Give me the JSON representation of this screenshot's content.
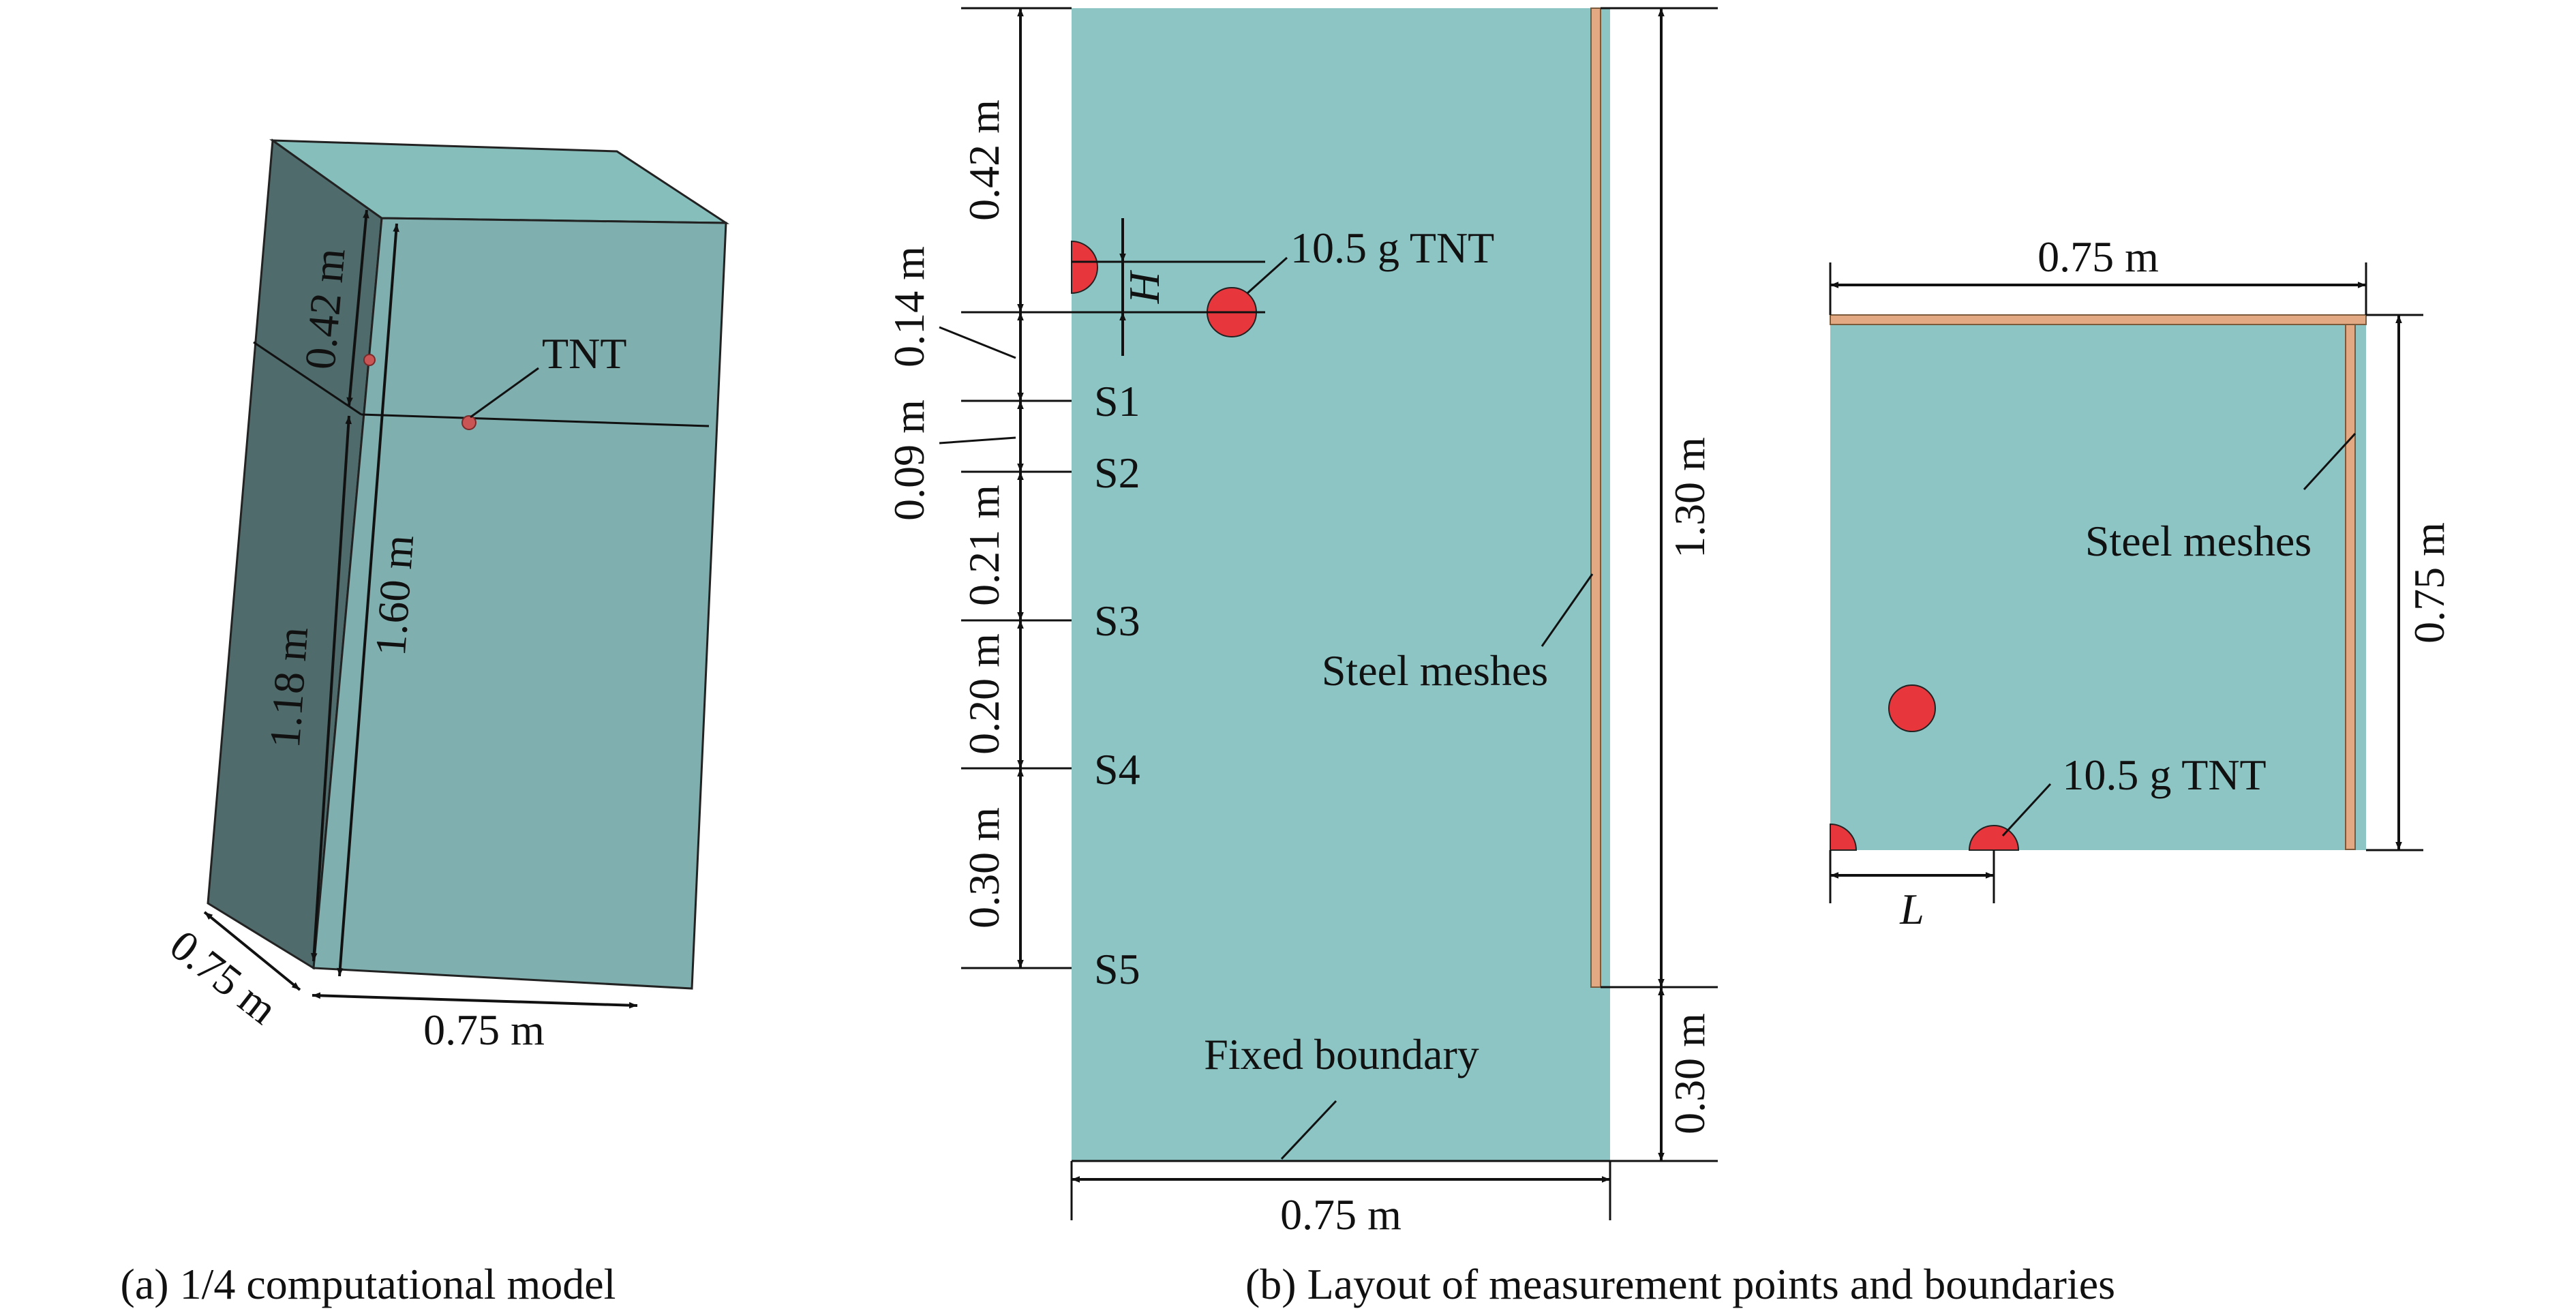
{
  "colors": {
    "medium": "#8CC5C4",
    "medium_front": "#7FAFAE",
    "medium_top": "#86BEBC",
    "medium_side": "#4F6B6B",
    "steel_mesh": "#E2A982",
    "tnt": "#E8363D",
    "line": "#111111"
  },
  "panel_a": {
    "caption": "(a) 1/4 computational model",
    "tnt_label": "TNT",
    "dims": {
      "top_height": "0.42 m",
      "lower_height": "1.18 m",
      "total_height": "1.60 m",
      "depth": "0.75 m",
      "width": "0.75 m"
    }
  },
  "panel_b": {
    "caption": "(b) Layout of measurement points and boundaries",
    "front_view": {
      "charge_label": "10.5 g TNT",
      "depth_symbol": "H",
      "mesh_label": "Steel meshes",
      "boundary_label": "Fixed boundary",
      "points": [
        "S1",
        "S2",
        "S3",
        "S4",
        "S5"
      ],
      "dims": {
        "top": "0.42 m",
        "s1": "0.14 m",
        "s2": "0.09 m",
        "s3": "0.21 m",
        "s4": "0.20 m",
        "s5": "0.30 m",
        "mesh_height": "1.30 m",
        "bottom": "0.30 m",
        "width": "0.75 m"
      }
    },
    "top_view": {
      "width": "0.75 m",
      "height": "0.75 m",
      "mesh_label": "Steel meshes",
      "charge_label": "10.5 g TNT",
      "spacing_symbol": "L"
    }
  }
}
